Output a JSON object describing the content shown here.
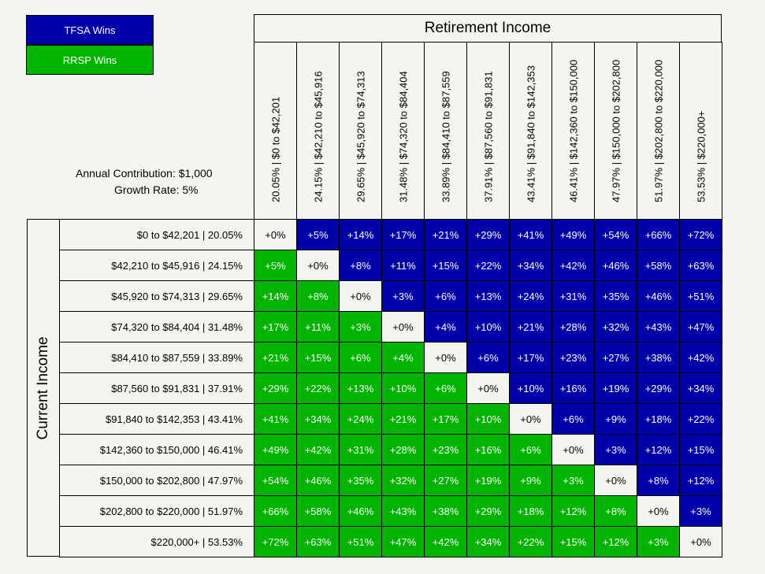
{
  "legend": {
    "tfsa_label": "TFSA Wins",
    "rrsp_label": "RRSP Wins",
    "tfsa_color": "#0000a8",
    "rrsp_color": "#00b400",
    "neutral_color": "#f5f5f0"
  },
  "info": {
    "contribution": "Annual Contribution: $1,000",
    "growth": "Growth Rate: 5%"
  },
  "chart_data": {
    "type": "heatmap",
    "col_title": "Retirement Income",
    "row_title": "Current Income",
    "columns": [
      "20.05%  |  $0 to $42,201",
      "24.15%  |  $42,210 to $45,916",
      "29.65%  |  $45,920 to $74,313",
      "31.48%  |  $74,320 to $84,404",
      "33.89%  |  $84,410 to $87,559",
      "37.91%  |  $87,560 to $91,831",
      "43.41%  |  $91,840 to $142,353",
      "46.41%  |  $142,360 to $150,000",
      "47.97%  |  $150,000 to $202,800",
      "51.97%  |  $202,800 to $220,000",
      "53.53%  |  $220,000+"
    ],
    "rows": [
      "$0 to $42,201  |  20.05%",
      "$42,210 to $45,916  |  24.15%",
      "$45,920 to $74,313  |  29.65%",
      "$74,320 to $84,404  |  31.48%",
      "$84,410 to $87,559  |  33.89%",
      "$87,560 to $91,831  |  37.91%",
      "$91,840 to $142,353  |  43.41%",
      "$142,360 to $150,000  |  46.41%",
      "$150,000 to $202,800  |  47.97%",
      "$202,800 to $220,000  |  51.97%",
      "$220,000+  |  53.53%"
    ],
    "values": [
      [
        "+0%",
        "+5%",
        "+14%",
        "+17%",
        "+21%",
        "+29%",
        "+41%",
        "+49%",
        "+54%",
        "+66%",
        "+72%"
      ],
      [
        "+5%",
        "+0%",
        "+8%",
        "+11%",
        "+15%",
        "+22%",
        "+34%",
        "+42%",
        "+46%",
        "+58%",
        "+63%"
      ],
      [
        "+14%",
        "+8%",
        "+0%",
        "+3%",
        "+6%",
        "+13%",
        "+24%",
        "+31%",
        "+35%",
        "+46%",
        "+51%"
      ],
      [
        "+17%",
        "+11%",
        "+3%",
        "+0%",
        "+4%",
        "+10%",
        "+21%",
        "+28%",
        "+32%",
        "+43%",
        "+47%"
      ],
      [
        "+21%",
        "+15%",
        "+6%",
        "+4%",
        "+0%",
        "+6%",
        "+17%",
        "+23%",
        "+27%",
        "+38%",
        "+42%"
      ],
      [
        "+29%",
        "+22%",
        "+13%",
        "+10%",
        "+6%",
        "+0%",
        "+10%",
        "+16%",
        "+19%",
        "+29%",
        "+34%"
      ],
      [
        "+41%",
        "+34%",
        "+24%",
        "+21%",
        "+17%",
        "+10%",
        "+0%",
        "+6%",
        "+9%",
        "+18%",
        "+22%"
      ],
      [
        "+49%",
        "+42%",
        "+31%",
        "+28%",
        "+23%",
        "+16%",
        "+6%",
        "+0%",
        "+3%",
        "+12%",
        "+15%"
      ],
      [
        "+54%",
        "+46%",
        "+35%",
        "+32%",
        "+27%",
        "+19%",
        "+9%",
        "+3%",
        "+0%",
        "+8%",
        "+12%"
      ],
      [
        "+66%",
        "+58%",
        "+46%",
        "+43%",
        "+38%",
        "+29%",
        "+18%",
        "+12%",
        "+8%",
        "+0%",
        "+3%"
      ],
      [
        "+72%",
        "+63%",
        "+51%",
        "+47%",
        "+42%",
        "+34%",
        "+22%",
        "+15%",
        "+12%",
        "+3%",
        "+0%"
      ]
    ]
  }
}
